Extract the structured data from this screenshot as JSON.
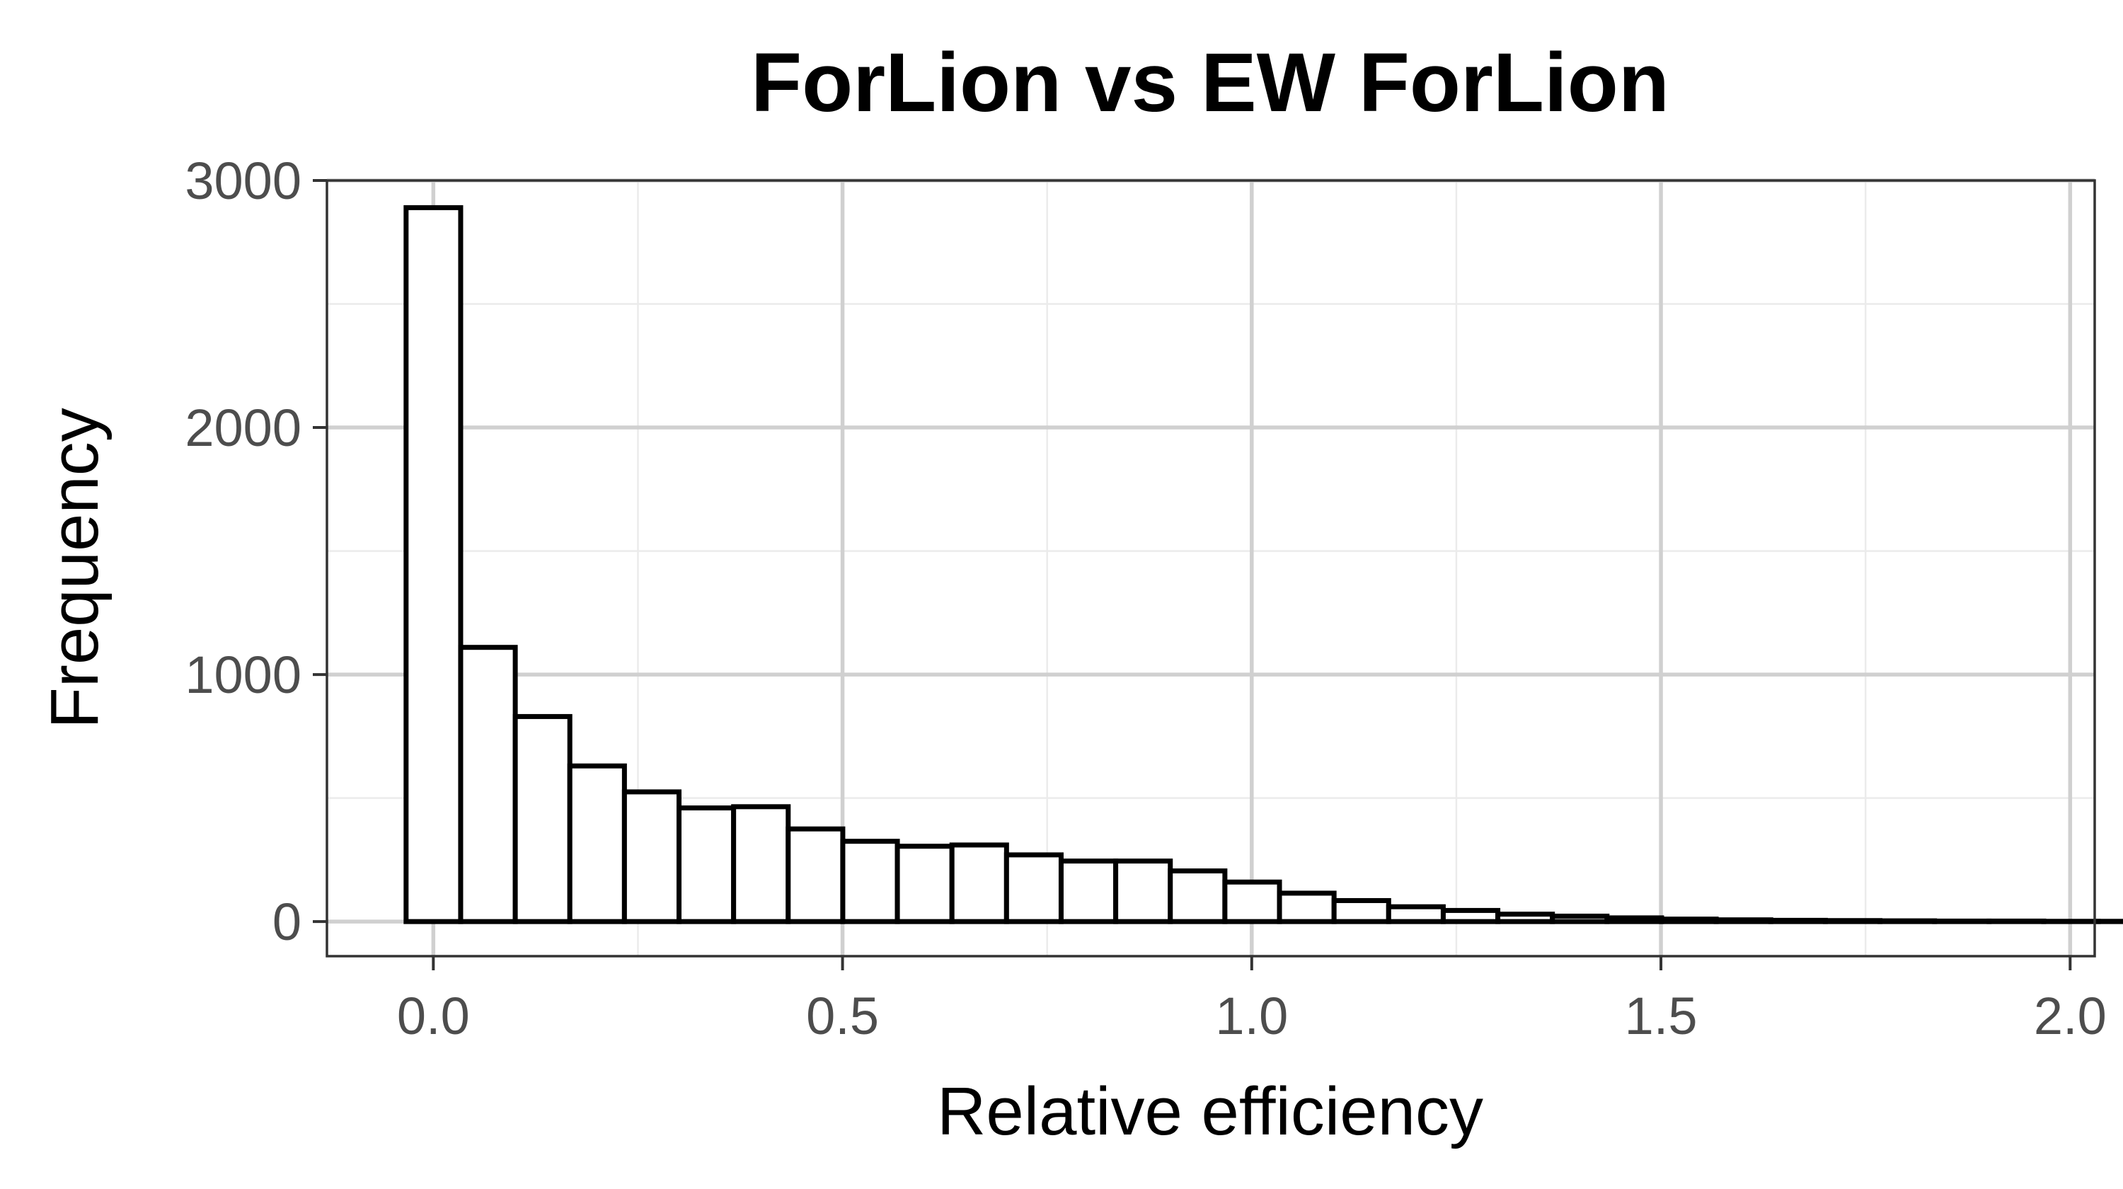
{
  "chart_data": {
    "type": "bar",
    "title": "ForLion vs EW ForLion",
    "xlabel": "Relative efficiency",
    "ylabel": "Frequency",
    "xlim": [
      -0.13,
      2.03
    ],
    "ylim": [
      -140,
      3000
    ],
    "bin_width": 0.0667,
    "bin_start": -0.0333,
    "x_ticks": [
      0.0,
      0.5,
      1.0,
      1.5,
      2.0
    ],
    "x_tick_labels": [
      "0.0",
      "0.5",
      "1.0",
      "1.5",
      "2.0"
    ],
    "x_minor_ticks": [
      0.25,
      0.75,
      1.25,
      1.75
    ],
    "y_ticks": [
      0,
      1000,
      2000,
      3000
    ],
    "y_tick_labels": [
      "0",
      "1000",
      "2000",
      "3000"
    ],
    "y_minor_ticks": [
      500,
      1500,
      2500
    ],
    "grid": true,
    "bar_fill": "#ffffff",
    "bar_stroke": "#000000",
    "values": [
      2890,
      1110,
      830,
      630,
      525,
      460,
      465,
      375,
      325,
      305,
      310,
      270,
      245,
      245,
      205,
      160,
      115,
      85,
      60,
      45,
      30,
      22,
      15,
      10,
      7,
      5,
      4,
      3,
      2,
      2,
      1,
      1,
      1,
      1,
      1,
      1,
      1,
      1,
      1,
      1
    ]
  }
}
